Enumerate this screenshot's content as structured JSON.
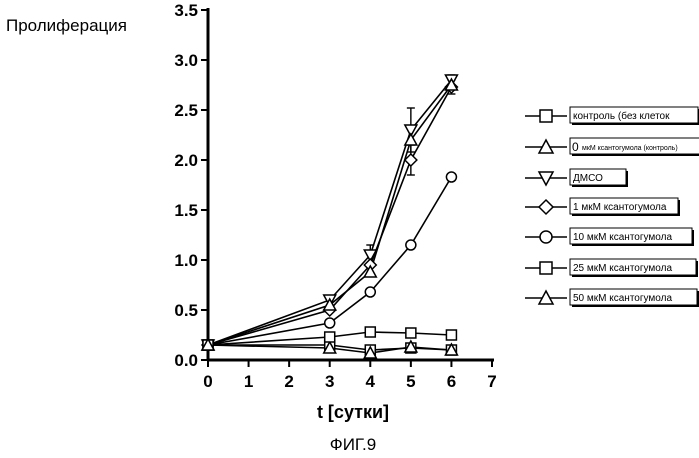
{
  "figure_caption": "ФИГ.9",
  "chart_data": {
    "type": "line",
    "ylabel": "Пролиферация",
    "xlabel": "t [сутки]",
    "xlim": [
      0,
      7
    ],
    "ylim": [
      0.0,
      3.5
    ],
    "x_ticks": [
      "0",
      "1",
      "2",
      "3",
      "4",
      "5",
      "6",
      "7"
    ],
    "y_ticks": [
      "0.0",
      "0.5",
      "1.0",
      "1.5",
      "2.0",
      "2.5",
      "3.0",
      "3.5"
    ],
    "grid": false,
    "legend_position": "right",
    "series": [
      {
        "name": "контроль (без клеток",
        "marker": "square",
        "x": [
          0,
          3,
          4,
          5,
          6
        ],
        "y": [
          0.15,
          0.15,
          0.1,
          0.12,
          0.1
        ]
      },
      {
        "name": "мкМ ксантогумола (контроль)",
        "legend_prefix": "0",
        "marker": "triangle-up",
        "x": [
          0,
          3,
          4,
          5,
          6
        ],
        "y": [
          0.15,
          0.12,
          0.07,
          0.13,
          0.1
        ]
      },
      {
        "name": "ДМСО",
        "marker": "triangle-down",
        "x": [
          0,
          3,
          4,
          5,
          6
        ],
        "y": [
          0.15,
          0.6,
          1.05,
          2.3,
          2.8
        ],
        "error": [
          0,
          0,
          0.1,
          0.22,
          0.05
        ]
      },
      {
        "name": "1 мкМ ксантогумола",
        "marker": "diamond",
        "x": [
          0,
          3,
          4,
          5,
          6
        ],
        "y": [
          0.15,
          0.5,
          0.95,
          2.0,
          2.73
        ],
        "error": [
          0,
          0,
          0,
          0.15,
          0.07
        ]
      },
      {
        "name": "10 мкМ ксантогумола",
        "marker": "circle",
        "x": [
          0,
          3,
          4,
          5,
          6
        ],
        "y": [
          0.15,
          0.37,
          0.68,
          1.15,
          1.83
        ]
      },
      {
        "name": "25 мкМ ксантогумола",
        "marker": "square",
        "x": [
          0,
          3,
          4,
          5,
          6
        ],
        "y": [
          0.15,
          0.23,
          0.28,
          0.27,
          0.25
        ]
      },
      {
        "name": "50 мкМ ксантогумола",
        "marker": "triangle-up",
        "x": [
          0,
          3,
          4,
          5,
          6
        ],
        "y": [
          0.15,
          0.55,
          0.88,
          2.2,
          2.75
        ]
      }
    ]
  }
}
